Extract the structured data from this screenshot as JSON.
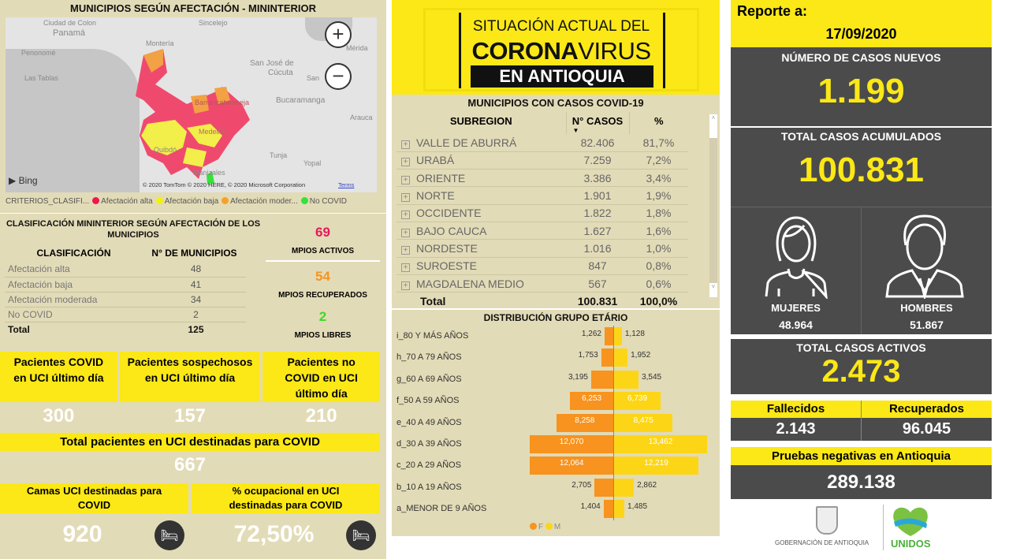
{
  "map": {
    "title": "MUNICIPIOS SEGÚN AFECTACIÓN - MININTERIOR",
    "cities": [
      "Ciudad de Colon",
      "Panamá",
      "Penonomé",
      "Las Tablas",
      "Montería",
      "Sincelejo",
      "San José de",
      "Cúcuta",
      "San",
      "Mérida",
      "Bucaramanga",
      "Arauca",
      "Barrancabermeja",
      "Medellín",
      "Quibdó",
      "Tunja",
      "Yopal",
      "Manizales"
    ],
    "attribution": "© 2020 TomTom © 2020 HERE, © 2020 Microsoft Corporation",
    "terms": "Terms",
    "bing": "Bing",
    "zoom_in": "+",
    "zoom_out": "−",
    "legend": {
      "title": "CRITERIOS_CLASIFI...",
      "items": [
        {
          "label": "Afectación alta",
          "color": "#f0174f"
        },
        {
          "label": "Afectación baja",
          "color": "#f2f20a"
        },
        {
          "label": "Afectación moder...",
          "color": "#f7a12a"
        },
        {
          "label": "No COVID",
          "color": "#34e23a"
        }
      ]
    }
  },
  "clasificacion": {
    "title": "CLASIFICACIÓN MININTERIOR SEGÚN AFECTACIÓN DE LOS MUNICIPIOS",
    "headers": [
      "CLASIFICACIÓN",
      "N° DE MUNICIPIOS"
    ],
    "rows": [
      [
        "Afectación alta",
        "48"
      ],
      [
        "Afectación baja",
        "41"
      ],
      [
        "Afectación moderada",
        "34"
      ],
      [
        "No COVID",
        "2"
      ]
    ],
    "total": [
      "Total",
      "125"
    ]
  },
  "mpios": [
    {
      "value": "69",
      "label": "MPIOS ACTIVOS",
      "color": "#e8185a"
    },
    {
      "value": "54",
      "label": "MPIOS RECUPERADOS",
      "color": "#f7931e"
    },
    {
      "value": "2",
      "label": "MPIOS LIBRES",
      "color": "#43d62a"
    }
  ],
  "uci": [
    {
      "label": "Pacientes COVID en UCI último día",
      "value": "300"
    },
    {
      "label": "Pacientes sospechosos en UCI último día",
      "value": "157"
    },
    {
      "label": "Pacientes no COVID en UCI último día",
      "value": "210"
    }
  ],
  "uci_total": {
    "label": "Total pacientes en UCI destinadas para COVID",
    "value": "667"
  },
  "camas": [
    {
      "label": "Camas UCI destinadas para COVID",
      "value": "920",
      "icon": "hospital-bed-icon"
    },
    {
      "label": "% ocupacional en UCI destinadas para COVID",
      "value": "72,50%",
      "icon": "hospital-bed-icon"
    }
  ],
  "banner": {
    "line1": "SITUACIÓN ACTUAL DEL",
    "line2a": "CORONA",
    "line2b": "VIRUS",
    "line3": "EN ANTIOQUIA"
  },
  "subregiones": {
    "title": "MUNICIPIOS CON CASOS COVID-19",
    "headers": [
      "SUBREGION",
      "N° CASOS",
      "%"
    ],
    "rows": [
      [
        "VALLE DE ABURRÁ",
        "82.406",
        "81,7%"
      ],
      [
        "URABÁ",
        "7.259",
        "7,2%"
      ],
      [
        "ORIENTE",
        "3.386",
        "3,4%"
      ],
      [
        "NORTE",
        "1.901",
        "1,9%"
      ],
      [
        "OCCIDENTE",
        "1.822",
        "1,8%"
      ],
      [
        "BAJO CAUCA",
        "1.627",
        "1,6%"
      ],
      [
        "NORDESTE",
        "1.016",
        "1,0%"
      ],
      [
        "SUROESTE",
        "847",
        "0,8%"
      ],
      [
        "MAGDALENA MEDIO",
        "567",
        "0,6%"
      ]
    ],
    "total": [
      "Total",
      "100.831",
      "100,0%"
    ]
  },
  "chart_data": {
    "type": "bar",
    "title": "DISTRIBUCIÓN GRUPO ETÁRIO",
    "orientation": "horizontal-pyramid",
    "categories": [
      "i_80 Y MÁS AÑOS",
      "h_70 A 79 AÑOS",
      "g_60 A 69 AÑOS",
      "f_50 A 59 AÑOS",
      "e_40 A 49 AÑOS",
      "d_30 A 39 AÑOS",
      "c_20 A 29 AÑOS",
      "b_10 A 19 AÑOS",
      "a_MENOR DE 9 AÑOS"
    ],
    "series": [
      {
        "name": "F",
        "color": "#f7931e",
        "values": [
          1262,
          1753,
          3195,
          6253,
          8258,
          12070,
          12064,
          2705,
          1404
        ],
        "labels": [
          "1,262",
          "1,753",
          "3,195",
          "6,253",
          "8,258",
          "12,070",
          "12,064",
          "2,705",
          "1,404"
        ]
      },
      {
        "name": "M",
        "color": "#fcd616",
        "values": [
          1128,
          1952,
          3545,
          6739,
          8475,
          13462,
          12219,
          2862,
          1485
        ],
        "labels": [
          "1,128",
          "1,952",
          "3,545",
          "6,739",
          "8,475",
          "13,462",
          "12,219",
          "2,862",
          "1,485"
        ]
      }
    ],
    "legend": "bottom"
  },
  "reporte": {
    "label": "Reporte a:",
    "date": "17/09/2020"
  },
  "nuevos": {
    "label": "NÚMERO DE CASOS NUEVOS",
    "value": "1.199"
  },
  "acumulados": {
    "label": "TOTAL CASOS ACUMULADOS",
    "value": "100.831"
  },
  "sexo": [
    {
      "label": "MUJERES",
      "value": "48.964",
      "icon": "woman-icon"
    },
    {
      "label": "HOMBRES",
      "value": "51.867",
      "icon": "man-icon"
    }
  ],
  "activos": {
    "label": "TOTAL CASOS ACTIVOS",
    "value": "2.473"
  },
  "fallecidos": {
    "label": "Fallecidos",
    "value": "2.143"
  },
  "recuperados": {
    "label": "Recuperados",
    "value": "96.045"
  },
  "pruebas": {
    "label": "Pruebas negativas en Antioquia",
    "value": "289.138"
  },
  "logos": {
    "gob": "GOBERNACIÓN DE ANTIOQUIA",
    "unidos": "UNIDOS"
  },
  "colors": {
    "yellow": "#fbe816",
    "dark": "#4b4b4b",
    "tan": "#e2dbb7"
  }
}
